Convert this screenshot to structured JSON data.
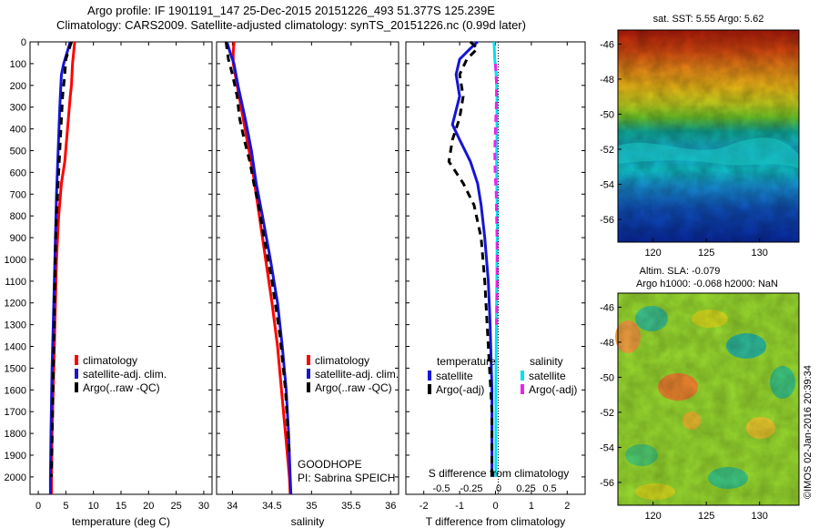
{
  "header": {
    "line1": "Argo profile: IF 1901191_147 25-Dec-2015 20151226_493 51.377S 125.239E",
    "line2": "Climatology: CARS2009. Satellite-adjusted climatology: synTS_20151226.nc (0.99d later)"
  },
  "colors": {
    "climatology": "#ff0000",
    "satellite": "#1515d6",
    "argo": "#000000",
    "salinity_satellite": "#00e0f0",
    "salinity_argo": "#ee22ee"
  },
  "depth_axis": {
    "ticks": [
      0,
      100,
      200,
      300,
      400,
      500,
      600,
      700,
      800,
      900,
      1000,
      1100,
      1200,
      1300,
      1400,
      1500,
      1600,
      1700,
      1800,
      1900,
      2000
    ],
    "range": [
      0,
      2080
    ]
  },
  "chart_data": [
    {
      "type": "line",
      "id": "temperature",
      "xlabel": "temperature (deg C)",
      "xlim": [
        -1.5,
        31.5
      ],
      "xticks": [
        0,
        5,
        10,
        15,
        20,
        25,
        30
      ],
      "legend": {
        "location": "lower-center",
        "entries": [
          "climatology",
          "satellite-adj. clim.",
          "Argo(..raw -QC)"
        ]
      },
      "series": [
        {
          "name": "climatology",
          "color": "#ff0000",
          "style": "solid",
          "points": [
            [
              6.6,
              0
            ],
            [
              6.4,
              50
            ],
            [
              6.2,
              100
            ],
            [
              6.0,
              200
            ],
            [
              5.8,
              250
            ],
            [
              5.3,
              400
            ],
            [
              4.8,
              550
            ],
            [
              4.2,
              650
            ],
            [
              3.7,
              800
            ],
            [
              3.3,
              1000
            ],
            [
              3.1,
              1200
            ],
            [
              2.9,
              1400
            ],
            [
              2.7,
              1600
            ],
            [
              2.5,
              1800
            ],
            [
              2.4,
              2000
            ],
            [
              2.4,
              2080
            ]
          ]
        },
        {
          "name": "satellite-adj. clim.",
          "color": "#1515d6",
          "style": "solid",
          "points": [
            [
              5.8,
              0
            ],
            [
              5.2,
              50
            ],
            [
              4.6,
              100
            ],
            [
              4.2,
              150
            ],
            [
              3.9,
              300
            ],
            [
              3.6,
              500
            ],
            [
              3.3,
              700
            ],
            [
              3.1,
              900
            ],
            [
              2.9,
              1100
            ],
            [
              2.7,
              1300
            ],
            [
              2.5,
              1500
            ],
            [
              2.3,
              1800
            ],
            [
              2.2,
              2000
            ],
            [
              2.2,
              2080
            ]
          ]
        },
        {
          "name": "Argo(..raw -QC)",
          "color": "#000000",
          "style": "dashed",
          "points": [
            [
              6.0,
              0
            ],
            [
              5.5,
              40
            ],
            [
              5.0,
              80
            ],
            [
              4.8,
              150
            ],
            [
              4.4,
              250
            ],
            [
              4.1,
              400
            ],
            [
              3.8,
              550
            ],
            [
              3.6,
              650
            ],
            [
              3.2,
              850
            ],
            [
              3.0,
              1100
            ],
            [
              2.8,
              1400
            ],
            [
              2.6,
              1700
            ],
            [
              2.4,
              2000
            ]
          ]
        }
      ]
    },
    {
      "type": "line",
      "id": "salinity",
      "xlabel": "salinity",
      "xlim": [
        33.8,
        36.1
      ],
      "xticks": [
        34,
        34.5,
        35,
        35.5,
        36
      ],
      "tick_labels": [
        "34",
        "34.5",
        "35",
        "35.5",
        "36"
      ],
      "legend": {
        "location": "lower-right",
        "entries": [
          "climatology",
          "satellite-adj. clim.",
          "Argo(..raw -QC)"
        ]
      },
      "annotation": [
        "GOODHOPE",
        "PI: Sabrina SPEICH"
      ],
      "series": [
        {
          "name": "climatology",
          "color": "#ff0000",
          "style": "solid",
          "points": [
            [
              34.02,
              0
            ],
            [
              34.01,
              50
            ],
            [
              34.01,
              100
            ],
            [
              34.06,
              200
            ],
            [
              34.16,
              400
            ],
            [
              34.26,
              600
            ],
            [
              34.34,
              800
            ],
            [
              34.42,
              1000
            ],
            [
              34.5,
              1200
            ],
            [
              34.57,
              1400
            ],
            [
              34.62,
              1600
            ],
            [
              34.67,
              1800
            ],
            [
              34.72,
              2000
            ],
            [
              34.73,
              2080
            ]
          ]
        },
        {
          "name": "satellite-adj. clim.",
          "color": "#1515d6",
          "style": "solid",
          "points": [
            [
              33.93,
              0
            ],
            [
              33.98,
              60
            ],
            [
              34.02,
              100
            ],
            [
              34.07,
              200
            ],
            [
              34.16,
              350
            ],
            [
              34.24,
              500
            ],
            [
              34.3,
              650
            ],
            [
              34.38,
              800
            ],
            [
              34.48,
              1000
            ],
            [
              34.57,
              1200
            ],
            [
              34.63,
              1400
            ],
            [
              34.68,
              1600
            ],
            [
              34.71,
              1800
            ],
            [
              34.73,
              2000
            ],
            [
              34.74,
              2080
            ]
          ]
        },
        {
          "name": "Argo(..raw -QC)",
          "color": "#000000",
          "style": "dashed",
          "points": [
            [
              33.92,
              0
            ],
            [
              33.95,
              80
            ],
            [
              34.0,
              150
            ],
            [
              34.06,
              250
            ],
            [
              34.09,
              350
            ],
            [
              34.15,
              450
            ],
            [
              34.22,
              550
            ],
            [
              34.27,
              650
            ],
            [
              34.33,
              750
            ],
            [
              34.4,
              900
            ],
            [
              34.5,
              1100
            ],
            [
              34.6,
              1350
            ],
            [
              34.67,
              1600
            ],
            [
              34.72,
              1900
            ]
          ]
        }
      ]
    },
    {
      "type": "line",
      "id": "difference",
      "xlabel": "T difference from climatology",
      "xlabel_top": "S difference from climatology",
      "xlim": [
        -2.5,
        2.5
      ],
      "xticks": [
        -2,
        -1,
        0,
        1,
        2
      ],
      "top_ticks": [
        "-0.5",
        "-0.25",
        "0",
        "0.25",
        "0.5"
      ],
      "legend": {
        "location": "lower-center",
        "groups": [
          {
            "heading": "temperature",
            "entries": [
              "satellite",
              "Argo(-adj)"
            ]
          },
          {
            "heading": "salinity",
            "entries": [
              "satellite",
              "Argo(-adj)"
            ]
          }
        ]
      },
      "series": [
        {
          "name": "temperature satellite",
          "color": "#1515d6",
          "style": "solid",
          "points": [
            [
              -0.5,
              0
            ],
            [
              -0.7,
              30
            ],
            [
              -1.0,
              80
            ],
            [
              -1.1,
              150
            ],
            [
              -1.0,
              250
            ],
            [
              -1.2,
              380
            ],
            [
              -1.0,
              450
            ],
            [
              -0.7,
              550
            ],
            [
              -0.5,
              650
            ],
            [
              -0.4,
              750
            ],
            [
              -0.3,
              900
            ],
            [
              -0.2,
              1100
            ],
            [
              -0.15,
              1300
            ],
            [
              -0.1,
              1600
            ],
            [
              -0.1,
              1900
            ],
            [
              -0.1,
              2000
            ]
          ]
        },
        {
          "name": "temperature Argo(-adj)",
          "color": "#000000",
          "style": "dashed",
          "points": [
            [
              -0.7,
              0
            ],
            [
              -0.5,
              30
            ],
            [
              -0.8,
              80
            ],
            [
              -1.0,
              150
            ],
            [
              -0.9,
              250
            ],
            [
              -1.0,
              350
            ],
            [
              -1.2,
              450
            ],
            [
              -1.3,
              550
            ],
            [
              -0.9,
              650
            ],
            [
              -0.6,
              750
            ],
            [
              -0.4,
              900
            ],
            [
              -0.3,
              1100
            ],
            [
              -0.2,
              1400
            ],
            [
              -0.1,
              1700
            ],
            [
              -0.1,
              2000
            ]
          ]
        },
        {
          "name": "salinity satellite",
          "color": "#00e0f0",
          "style": "solid",
          "points": [
            [
              -0.04,
              0
            ],
            [
              -0.02,
              80
            ],
            [
              0.02,
              150
            ],
            [
              0.04,
              250
            ],
            [
              0.04,
              400
            ],
            [
              0.03,
              550
            ],
            [
              0.04,
              700
            ],
            [
              0.05,
              850
            ],
            [
              0.04,
              1000
            ],
            [
              0.03,
              1200
            ],
            [
              0.02,
              1400
            ],
            [
              0.01,
              1600
            ],
            [
              0.01,
              2000
            ]
          ]
        },
        {
          "name": "salinity Argo(-adj)",
          "color": "#ee22ee",
          "style": "dashed",
          "points": [
            [
              0.0,
              100
            ],
            [
              0.03,
              200
            ],
            [
              0.02,
              300
            ],
            [
              0.0,
              400
            ],
            [
              -0.02,
              500
            ],
            [
              -0.01,
              600
            ],
            [
              0.02,
              700
            ],
            [
              0.03,
              800
            ],
            [
              0.04,
              900
            ],
            [
              0.05,
              1000
            ],
            [
              0.05,
              1100
            ],
            [
              0.04,
              1200
            ],
            [
              0.03,
              1300
            ]
          ]
        }
      ]
    }
  ],
  "maps": {
    "sst": {
      "caption": "sat. SST: 5.55  Argo: 5.62",
      "xticks": [
        120,
        125,
        130
      ],
      "yticks": [
        -46,
        -48,
        -50,
        -52,
        -54,
        -56
      ]
    },
    "sla": {
      "caption1": "Altim. SLA: -0.079",
      "caption2": "Argo h1000: -0.068 h2000: NaN",
      "xticks": [
        120,
        125,
        130
      ],
      "yticks": [
        -46,
        -48,
        -50,
        -52,
        -54,
        -56
      ]
    },
    "watermark": "©IMOS 02-Jan-2016 20:39:34"
  }
}
